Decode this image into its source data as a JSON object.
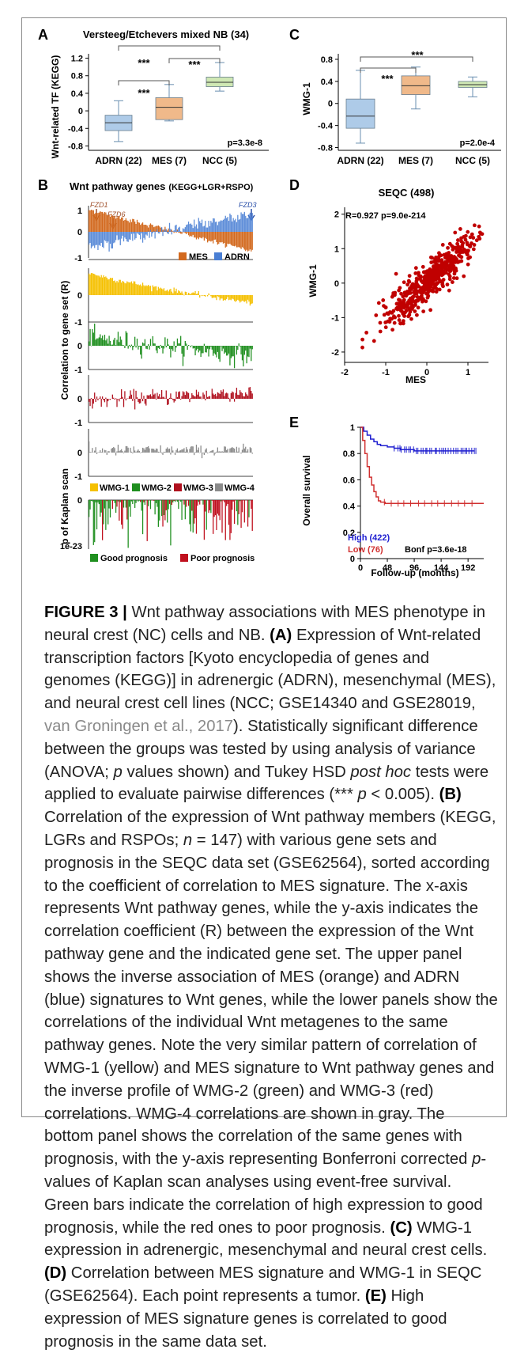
{
  "panel_a": {
    "letter": "A",
    "title": "Versteeg/Etchevers mixed NB (34)",
    "ylabel": "Wnt-related TF (KEGG)",
    "yticks": [
      "1.2",
      "0.8",
      "0.4",
      "0",
      "-0.4",
      "-0.8"
    ],
    "pvalue": "p=3.3e-8",
    "sig_labels": [
      "***",
      "***",
      "***"
    ],
    "chart_data": {
      "type": "box",
      "categories": [
        "ADRN (22)",
        "MES (7)",
        "NCC (5)"
      ],
      "ylim": [
        -0.9,
        1.3
      ],
      "boxes": [
        {
          "min": -0.7,
          "q1": -0.45,
          "median": -0.27,
          "q3": -0.1,
          "max": 0.23
        },
        {
          "min": -0.23,
          "q1": -0.2,
          "median": 0.08,
          "q3": 0.3,
          "max": 0.6
        },
        {
          "min": 0.45,
          "q1": 0.55,
          "median": 0.65,
          "q3": 0.77,
          "max": 1.1
        }
      ],
      "colors": [
        "#aecbe8",
        "#f0b98a",
        "#cfe8b4"
      ]
    }
  },
  "panel_c": {
    "letter": "C",
    "ylabel": "WMG-1",
    "yticks": [
      "0.8",
      "0.4",
      "0",
      "-0.4",
      "-0.8"
    ],
    "pvalue": "p=2.0e-4",
    "sig_labels": [
      "***",
      "***"
    ],
    "chart_data": {
      "type": "box",
      "categories": [
        "ADRN (22)",
        "MES (7)",
        "NCC (5)"
      ],
      "ylim": [
        -0.85,
        0.9
      ],
      "boxes": [
        {
          "min": -0.72,
          "q1": -0.45,
          "median": -0.23,
          "q3": 0.08,
          "max": 0.6
        },
        {
          "min": -0.1,
          "q1": 0.16,
          "median": 0.32,
          "q3": 0.5,
          "max": 0.66
        },
        {
          "min": 0.12,
          "q1": 0.29,
          "median": 0.34,
          "q3": 0.4,
          "max": 0.48
        }
      ],
      "colors": [
        "#aecbe8",
        "#f0b98a",
        "#cfe8b4"
      ]
    }
  },
  "panel_b": {
    "letter": "B",
    "title": "Wnt pathway genes",
    "title_sub": "(KEGG+LGR+RSPO)",
    "gene_labels": [
      "FZD1",
      "FZD6",
      "FZD3"
    ],
    "ylabel_corr": "Correlation to gene set (R)",
    "ylabel_kaplan": "p of Kaplan scan",
    "tick_1": "1",
    "tick_0": "0",
    "tick_m1": "-1",
    "kaplan_ticks": [
      "0",
      "1e-23"
    ],
    "legend_top": [
      {
        "label": "MES",
        "color": "#d2691e"
      },
      {
        "label": "ADRN",
        "color": "#4a7fd4"
      }
    ],
    "legend_wmg": [
      {
        "label": "WMG-1",
        "color": "#f5c000"
      },
      {
        "label": "WMG-2",
        "color": "#1f8f1f"
      },
      {
        "label": "WMG-3",
        "color": "#b0101e"
      },
      {
        "label": "WMG-4",
        "color": "#8a8a8a"
      }
    ],
    "legend_prog": [
      {
        "label": "Good prognosis",
        "color": "#1f8f1f"
      },
      {
        "label": "Poor prognosis",
        "color": "#c0101e"
      }
    ],
    "chart_data": {
      "type": "bar",
      "n_genes": 147,
      "series": [
        {
          "name": "MES",
          "color": "#d2691e",
          "pattern": "descending",
          "start": 0.85,
          "end": -0.75
        },
        {
          "name": "ADRN",
          "color": "#4a7fd4",
          "pattern": "ascending",
          "start": -0.6,
          "end": 0.7
        },
        {
          "name": "WMG-1",
          "color": "#f5c000",
          "pattern": "descending",
          "start": 0.85,
          "end": -0.3
        },
        {
          "name": "WMG-2",
          "color": "#1f8f1f",
          "pattern": "ascending-noisy",
          "start": 0.35,
          "end": -0.45
        },
        {
          "name": "WMG-3",
          "color": "#b0101e",
          "pattern": "noisy",
          "start": 0.25,
          "end": 0.3
        },
        {
          "name": "WMG-4",
          "color": "#8a8a8a",
          "pattern": "small-noise",
          "start": 0.1,
          "end": 0.15
        }
      ],
      "kaplan": {
        "good_color": "#1f8f1f",
        "poor_color": "#c0101e",
        "min_log10p": -23
      }
    }
  },
  "panel_d": {
    "letter": "D",
    "title": "SEQC (498)",
    "stats": "R=0.927  p=9.0e-214",
    "ylabel": "WMG-1",
    "xlabel": "MES",
    "chart_data": {
      "type": "scatter",
      "n_points": 498,
      "r": 0.927,
      "xlim": [
        -2,
        1.5
      ],
      "ylim": [
        -2.3,
        2.2
      ],
      "xticks": [
        "-2",
        "-1",
        "0",
        "1"
      ],
      "yticks": [
        "2",
        "1",
        "0",
        "-1",
        "-2"
      ],
      "color": "#c00000"
    }
  },
  "panel_e": {
    "letter": "E",
    "ylabel": "Overall survival",
    "xlabel": "Follow-up (months)",
    "yticks": [
      "1",
      "0.8",
      "0.6",
      "0.4",
      "0.2",
      "0"
    ],
    "xticks": [
      "0",
      "48",
      "96",
      "144",
      "192"
    ],
    "high_label": "High (422)",
    "low_label": "Low (76)",
    "pvalue": "Bonf p=3.6e-18",
    "chart_data": {
      "type": "line",
      "xlim": [
        0,
        220
      ],
      "ylim": [
        0,
        1
      ],
      "series": [
        {
          "name": "High (422)",
          "color": "#2020d0",
          "x": [
            0,
            6,
            12,
            18,
            24,
            30,
            36,
            48,
            60,
            72,
            84,
            96,
            108,
            120,
            132,
            144,
            156,
            168,
            180,
            192,
            204
          ],
          "y": [
            1.0,
            0.97,
            0.94,
            0.91,
            0.89,
            0.87,
            0.86,
            0.85,
            0.84,
            0.83,
            0.83,
            0.82,
            0.82,
            0.82,
            0.82,
            0.82,
            0.82,
            0.82,
            0.82,
            0.82,
            0.82
          ]
        },
        {
          "name": "Low (76)",
          "color": "#d03030",
          "x": [
            0,
            4,
            8,
            12,
            16,
            20,
            24,
            28,
            32,
            36,
            44,
            52,
            60,
            72,
            96,
            120,
            150,
            180,
            204,
            220
          ],
          "y": [
            1.0,
            0.9,
            0.8,
            0.7,
            0.62,
            0.56,
            0.51,
            0.47,
            0.44,
            0.43,
            0.42,
            0.42,
            0.42,
            0.42,
            0.42,
            0.42,
            0.42,
            0.42,
            0.42,
            0.42
          ]
        }
      ]
    }
  },
  "caption": {
    "fig_label": "FIGURE 3 |",
    "intro": " Wnt pathway associations with MES phenotype in neural crest (NC) cells and NB. ",
    "a_label": "(A)",
    "a_text_1": " Expression of Wnt-related transcription factors [Kyoto encyclopedia of genes and genomes (KEGG)] in adrenergic (ADRN), mesenchymal (MES), and neural crest cell lines (NCC; GSE14340 and GSE28019, ",
    "a_ref": "van Groningen et al., 2017",
    "a_text_2": "). Statistically significant difference between the groups was tested by using analysis of variance (ANOVA; ",
    "a_p": "p",
    "a_text_3": " values shown) and Tukey HSD ",
    "a_posthoc": "post hoc",
    "a_text_4": " tests were applied to evaluate pairwise differences (*** ",
    "a_p2": "p",
    "a_text_5": " < 0.005). ",
    "b_label": "(B)",
    "b_text_1": " Correlation of the expression of Wnt pathway members (KEGG, LGRs and RSPOs; ",
    "b_n": "n",
    "b_text_2": " = 147) with various gene sets and prognosis in the SEQC data set (GSE62564), sorted according to the coefficient of correlation to MES signature. The x-axis represents Wnt pathway genes, while the y-axis indicates the correlation coefficient (R) between the expression of the Wnt pathway gene and the indicated gene set. The upper panel shows the inverse association of MES (orange) and ADRN (blue) signatures to Wnt genes, while the lower panels show the correlations of the individual Wnt metagenes to the same pathway genes. Note the very similar pattern of correlation of WMG-1 (yellow) and MES signature to Wnt pathway genes and the inverse profile of WMG-2 (green) and WMG-3 (red) correlations. WMG-4 correlations are shown in gray. The bottom panel shows the correlation of the same genes with prognosis, with the y-axis representing Bonferroni corrected ",
    "b_p": "p",
    "b_text_3": "-values of Kaplan scan analyses using event-free survival. Green bars indicate the correlation of high expression to good prognosis, while the red ones to poor prognosis. ",
    "c_label": "(C)",
    "c_text": " WMG-1 expression in adrenergic, mesenchymal and neural crest cells. ",
    "d_label": "(D)",
    "d_text": " Correlation between MES signature and WMG-1 in SEQC (GSE62564). Each point represents a tumor. ",
    "e_label": "(E)",
    "e_text": " High expression of MES signature genes is correlated to good prognosis in the same data set."
  }
}
